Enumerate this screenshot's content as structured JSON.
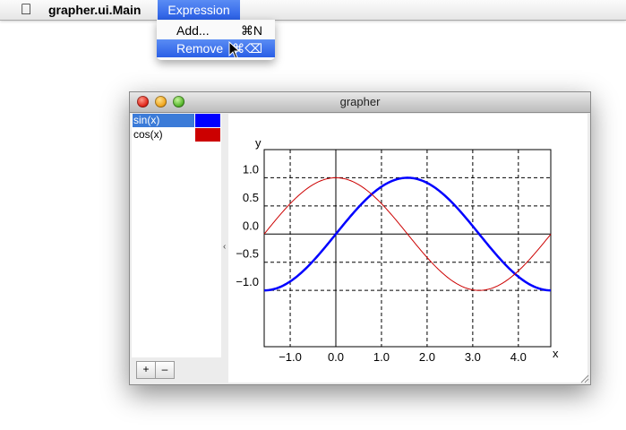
{
  "menubar": {
    "apple_icon": "apple-logo-icon",
    "app_name": "grapher.ui.Main",
    "menus": [
      {
        "label": "Expression",
        "active": true
      }
    ]
  },
  "dropdown": {
    "items": [
      {
        "label": "Add...",
        "shortcut": "⌘N",
        "highlighted": false
      },
      {
        "label": "Remove",
        "shortcut": "⌘⌫",
        "highlighted": true
      }
    ]
  },
  "window": {
    "title": "grapher",
    "functions": [
      {
        "label": "sin(x)",
        "color": "#0000ff",
        "selected": true
      },
      {
        "label": "cos(x)",
        "color": "#cc0000",
        "selected": false
      }
    ],
    "add_button": "+",
    "remove_button": "–",
    "divider_glyph": "‹"
  },
  "chart_data": {
    "type": "line",
    "xlabel": "x",
    "ylabel": "y",
    "xlim": [
      -1.57,
      4.71
    ],
    "ylim": [
      -2.0,
      1.5
    ],
    "x_ticks": [
      -1.0,
      0.0,
      1.0,
      2.0,
      3.0,
      4.0
    ],
    "x_tick_labels": [
      "−1.0",
      "0.0",
      "1.0",
      "2.0",
      "3.0",
      "4.0"
    ],
    "y_ticks": [
      1.0,
      0.5,
      0.0,
      -0.5,
      -1.0
    ],
    "y_tick_labels": [
      "1.0",
      "0.5",
      "0.0",
      "−0.5",
      "−1.0"
    ],
    "grid": true,
    "series": [
      {
        "name": "sin(x)",
        "function": "sin",
        "color": "#0000ff",
        "x_start": -1.57,
        "x_end": 4.71
      },
      {
        "name": "cos(x)",
        "function": "cos",
        "color": "#cc0000",
        "x_start": -1.57,
        "x_end": 4.71
      }
    ]
  }
}
